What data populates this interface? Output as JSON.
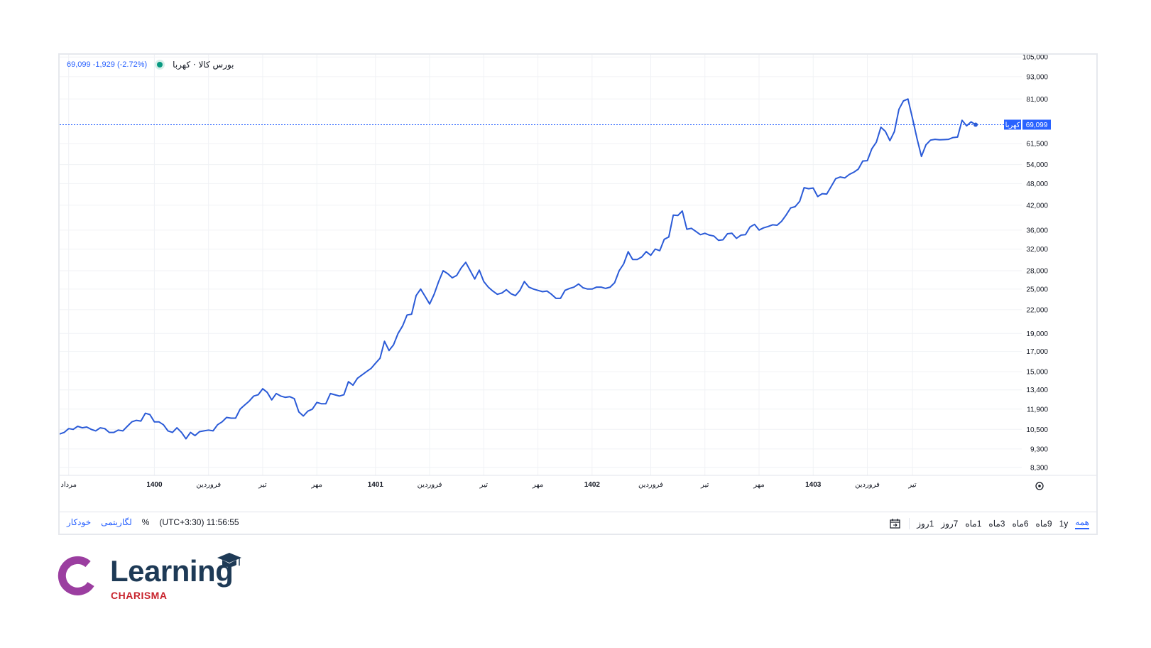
{
  "header": {
    "symbol": "بورس کالا · کهربا",
    "last_price": "69,099",
    "change": "-1,929",
    "change_pct": "(-2.72%)"
  },
  "price_label": {
    "tag": "کهربا",
    "value": "69,099"
  },
  "bottom": {
    "time": "(UTC+3:30) 11:56:55",
    "percent": "%",
    "log": "لگاریتمی",
    "auto": "خودکار",
    "ranges": [
      "همه",
      "1y",
      "9ماه",
      "6ماه",
      "3ماه",
      "1ماه",
      "7روز",
      "1روز"
    ]
  },
  "logo": {
    "word": "Learning",
    "sub": "CHARISMA"
  },
  "colors": {
    "line": "#2b5bd7",
    "accent": "#2962ff",
    "logo_purple": "#9b3ea0",
    "logo_navy": "#1e3a56",
    "logo_red": "#c8232c"
  },
  "chart_data": {
    "type": "line",
    "scale": "log",
    "ylim": [
      8000,
      110000
    ],
    "y_ticks": [
      105000,
      93000,
      81000,
      61500,
      54000,
      48000,
      42000,
      36000,
      32000,
      28000,
      25000,
      22000,
      19000,
      17000,
      15000,
      13400,
      11900,
      10500,
      9300,
      8300
    ],
    "y_tick_labels": [
      "105,000",
      "93,000",
      "81,000",
      "61,500",
      "54,000",
      "48,000",
      "42,000",
      "36,000",
      "32,000",
      "28,000",
      "25,000",
      "22,000",
      "19,000",
      "17,000",
      "15,000",
      "13,400",
      "11,900",
      "10,500",
      "9,300",
      "8,300"
    ],
    "x_ticks": [
      {
        "label": "مرداد",
        "x": 2,
        "bold": false
      },
      {
        "label": "1400",
        "x": 21,
        "bold": true
      },
      {
        "label": "فروردین",
        "x": 33,
        "bold": false
      },
      {
        "label": "تیر",
        "x": 45,
        "bold": false
      },
      {
        "label": "مهر",
        "x": 57,
        "bold": false
      },
      {
        "label": "1401",
        "x": 70,
        "bold": true
      },
      {
        "label": "فروردین",
        "x": 82,
        "bold": false
      },
      {
        "label": "تیر",
        "x": 94,
        "bold": false
      },
      {
        "label": "مهر",
        "x": 106,
        "bold": false
      },
      {
        "label": "1402",
        "x": 118,
        "bold": true
      },
      {
        "label": "فروردین",
        "x": 131,
        "bold": false
      },
      {
        "label": "تیر",
        "x": 143,
        "bold": false
      },
      {
        "label": "مهر",
        "x": 155,
        "bold": false
      },
      {
        "label": "1403",
        "x": 167,
        "bold": true
      },
      {
        "label": "فروردین",
        "x": 179,
        "bold": false
      },
      {
        "label": "تیر",
        "x": 189,
        "bold": false
      }
    ],
    "x_range": [
      0,
      204
    ],
    "current_value": 69099,
    "series": [
      {
        "values": [
          [
            0,
            10200
          ],
          [
            1,
            10300
          ],
          [
            2,
            10550
          ],
          [
            3,
            10500
          ],
          [
            4,
            10700
          ],
          [
            5,
            10600
          ],
          [
            6,
            10650
          ],
          [
            7,
            10500
          ],
          [
            8,
            10400
          ],
          [
            9,
            10600
          ],
          [
            10,
            10550
          ],
          [
            11,
            10300
          ],
          [
            12,
            10300
          ],
          [
            13,
            10450
          ],
          [
            14,
            10400
          ],
          [
            15,
            10700
          ],
          [
            16,
            11000
          ],
          [
            17,
            11100
          ],
          [
            18,
            11050
          ],
          [
            19,
            11600
          ],
          [
            20,
            11500
          ],
          [
            21,
            11000
          ],
          [
            22,
            11000
          ],
          [
            23,
            10800
          ],
          [
            24,
            10400
          ],
          [
            25,
            10300
          ],
          [
            26,
            10600
          ],
          [
            27,
            10300
          ],
          [
            28,
            9900
          ],
          [
            29,
            10300
          ],
          [
            30,
            10100
          ],
          [
            31,
            10350
          ],
          [
            32,
            10400
          ],
          [
            33,
            10450
          ],
          [
            34,
            10400
          ],
          [
            35,
            10800
          ],
          [
            36,
            11000
          ],
          [
            37,
            11300
          ],
          [
            38,
            11250
          ],
          [
            39,
            11250
          ],
          [
            40,
            11900
          ],
          [
            41,
            12200
          ],
          [
            42,
            12500
          ],
          [
            43,
            12900
          ],
          [
            44,
            13000
          ],
          [
            45,
            13500
          ],
          [
            46,
            13200
          ],
          [
            47,
            12600
          ],
          [
            48,
            13100
          ],
          [
            49,
            12900
          ],
          [
            50,
            12800
          ],
          [
            51,
            12850
          ],
          [
            52,
            12700
          ],
          [
            53,
            11700
          ],
          [
            54,
            11400
          ],
          [
            55,
            11750
          ],
          [
            56,
            11900
          ],
          [
            57,
            12400
          ],
          [
            58,
            12300
          ],
          [
            59,
            12300
          ],
          [
            60,
            13100
          ],
          [
            61,
            13000
          ],
          [
            62,
            12900
          ],
          [
            63,
            13000
          ],
          [
            64,
            14100
          ],
          [
            65,
            13800
          ],
          [
            66,
            14400
          ],
          [
            67,
            14700
          ],
          [
            68,
            15000
          ],
          [
            69,
            15300
          ],
          [
            70,
            15800
          ],
          [
            71,
            16300
          ],
          [
            72,
            18100
          ],
          [
            73,
            17100
          ],
          [
            74,
            17700
          ],
          [
            75,
            19000
          ],
          [
            76,
            19900
          ],
          [
            77,
            21300
          ],
          [
            78,
            21400
          ],
          [
            79,
            24000
          ],
          [
            80,
            25000
          ],
          [
            81,
            23900
          ],
          [
            82,
            22800
          ],
          [
            83,
            24200
          ],
          [
            84,
            26200
          ],
          [
            85,
            28000
          ],
          [
            86,
            27500
          ],
          [
            87,
            26800
          ],
          [
            88,
            27200
          ],
          [
            89,
            28500
          ],
          [
            90,
            29500
          ],
          [
            91,
            28000
          ],
          [
            92,
            26600
          ],
          [
            93,
            28100
          ],
          [
            94,
            26200
          ],
          [
            95,
            25300
          ],
          [
            96,
            24700
          ],
          [
            97,
            24200
          ],
          [
            98,
            24400
          ],
          [
            99,
            24900
          ],
          [
            100,
            24300
          ],
          [
            101,
            24000
          ],
          [
            102,
            24800
          ],
          [
            103,
            26200
          ],
          [
            104,
            25300
          ],
          [
            105,
            25000
          ],
          [
            106,
            24800
          ],
          [
            107,
            24600
          ],
          [
            108,
            24700
          ],
          [
            109,
            24200
          ],
          [
            110,
            23600
          ],
          [
            111,
            23600
          ],
          [
            112,
            24800
          ],
          [
            113,
            25100
          ],
          [
            114,
            25300
          ],
          [
            115,
            25800
          ],
          [
            116,
            25200
          ],
          [
            117,
            25000
          ],
          [
            118,
            25000
          ],
          [
            119,
            25300
          ],
          [
            120,
            25300
          ],
          [
            121,
            25100
          ],
          [
            122,
            25300
          ],
          [
            123,
            26000
          ],
          [
            124,
            28000
          ],
          [
            125,
            29200
          ],
          [
            126,
            31500
          ],
          [
            127,
            30000
          ],
          [
            128,
            30000
          ],
          [
            129,
            30500
          ],
          [
            130,
            31500
          ],
          [
            131,
            30800
          ],
          [
            132,
            32000
          ],
          [
            133,
            31700
          ],
          [
            134,
            34000
          ],
          [
            135,
            34500
          ],
          [
            136,
            39500
          ],
          [
            137,
            39400
          ],
          [
            138,
            40500
          ],
          [
            139,
            36200
          ],
          [
            140,
            36400
          ],
          [
            141,
            35700
          ],
          [
            142,
            35000
          ],
          [
            143,
            35300
          ],
          [
            144,
            34900
          ],
          [
            145,
            34700
          ],
          [
            146,
            33800
          ],
          [
            147,
            33900
          ],
          [
            148,
            35200
          ],
          [
            149,
            35300
          ],
          [
            150,
            34200
          ],
          [
            151,
            34900
          ],
          [
            152,
            35000
          ],
          [
            153,
            36700
          ],
          [
            154,
            37300
          ],
          [
            155,
            36000
          ],
          [
            156,
            36500
          ],
          [
            157,
            36800
          ],
          [
            158,
            37200
          ],
          [
            159,
            37100
          ],
          [
            160,
            38000
          ],
          [
            161,
            39500
          ],
          [
            162,
            41300
          ],
          [
            163,
            41600
          ],
          [
            164,
            43000
          ],
          [
            165,
            46800
          ],
          [
            166,
            46500
          ],
          [
            167,
            46700
          ],
          [
            168,
            44300
          ],
          [
            169,
            45100
          ],
          [
            170,
            45000
          ],
          [
            171,
            47200
          ],
          [
            172,
            49500
          ],
          [
            173,
            50000
          ],
          [
            174,
            49700
          ],
          [
            175,
            50800
          ],
          [
            176,
            51500
          ],
          [
            177,
            52500
          ],
          [
            178,
            55200
          ],
          [
            179,
            55300
          ],
          [
            180,
            59500
          ],
          [
            181,
            62000
          ],
          [
            182,
            68000
          ],
          [
            183,
            66300
          ],
          [
            184,
            62600
          ],
          [
            185,
            66200
          ],
          [
            186,
            76000
          ],
          [
            187,
            80000
          ],
          [
            188,
            81000
          ],
          [
            189,
            72000
          ],
          [
            190,
            63500
          ],
          [
            191,
            56800
          ],
          [
            192,
            61000
          ],
          [
            193,
            62800
          ],
          [
            194,
            63100
          ],
          [
            195,
            62900
          ],
          [
            196,
            63000
          ],
          [
            197,
            63100
          ],
          [
            198,
            63800
          ],
          [
            199,
            64000
          ],
          [
            200,
            71000
          ],
          [
            201,
            68600
          ],
          [
            202,
            70300
          ],
          [
            203,
            69099
          ]
        ]
      }
    ]
  }
}
